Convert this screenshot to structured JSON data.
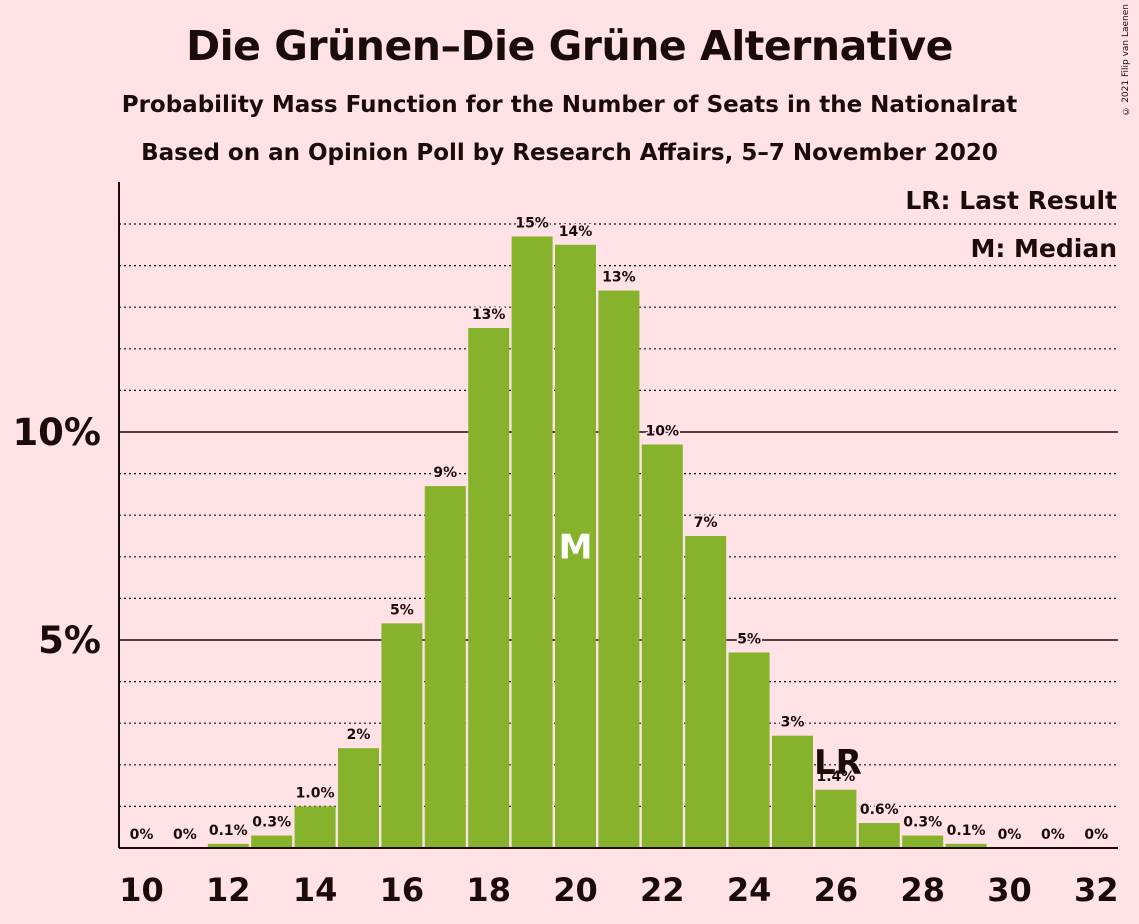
{
  "title": "Die Grünen–Die Grüne Alternative",
  "subtitle1": "Probability Mass Function for the Number of Seats in the Nationalrat",
  "subtitle2": "Based on an Opinion Poll by Research Affairs, 5–7 November 2020",
  "copyright": "© 2021 Filip van Laenen",
  "legend": {
    "last_result": "LR: Last Result",
    "median": "M: Median"
  },
  "colors": {
    "background": "#FFE2E5",
    "bar": "#86B32B",
    "text": "#1a0b0c"
  },
  "chart_data": {
    "type": "bar",
    "categories": [
      10,
      11,
      12,
      13,
      14,
      15,
      16,
      17,
      18,
      19,
      20,
      21,
      22,
      23,
      24,
      25,
      26,
      27,
      28,
      29,
      30,
      31,
      32
    ],
    "values": [
      0,
      0,
      0.1,
      0.3,
      1.0,
      2.4,
      5.4,
      8.7,
      12.5,
      14.7,
      14.5,
      13.4,
      9.7,
      7.5,
      4.7,
      2.7,
      1.4,
      0.6,
      0.3,
      0.1,
      0,
      0,
      0
    ],
    "data_labels": [
      "0%",
      "0%",
      "0.1%",
      "0.3%",
      "1.0%",
      "2%",
      "5%",
      "9%",
      "13%",
      "15%",
      "14%",
      "13%",
      "10%",
      "7%",
      "5%",
      "3%",
      "1.4%",
      "0.6%",
      "0.3%",
      "0.1%",
      "0%",
      "0%",
      "0%"
    ],
    "x_tick_labels": [
      "10",
      "12",
      "14",
      "16",
      "18",
      "20",
      "22",
      "24",
      "26",
      "28",
      "30",
      "32"
    ],
    "y_tick_labels": [
      "5%",
      "10%"
    ],
    "y_ticks": [
      5,
      10
    ],
    "ylim": [
      0,
      16
    ],
    "minor_grid_step": 1,
    "median_seat": 20,
    "median_marker": "M",
    "last_result_seat": 26,
    "last_result_marker": "LR",
    "legend_position": "top-right"
  }
}
